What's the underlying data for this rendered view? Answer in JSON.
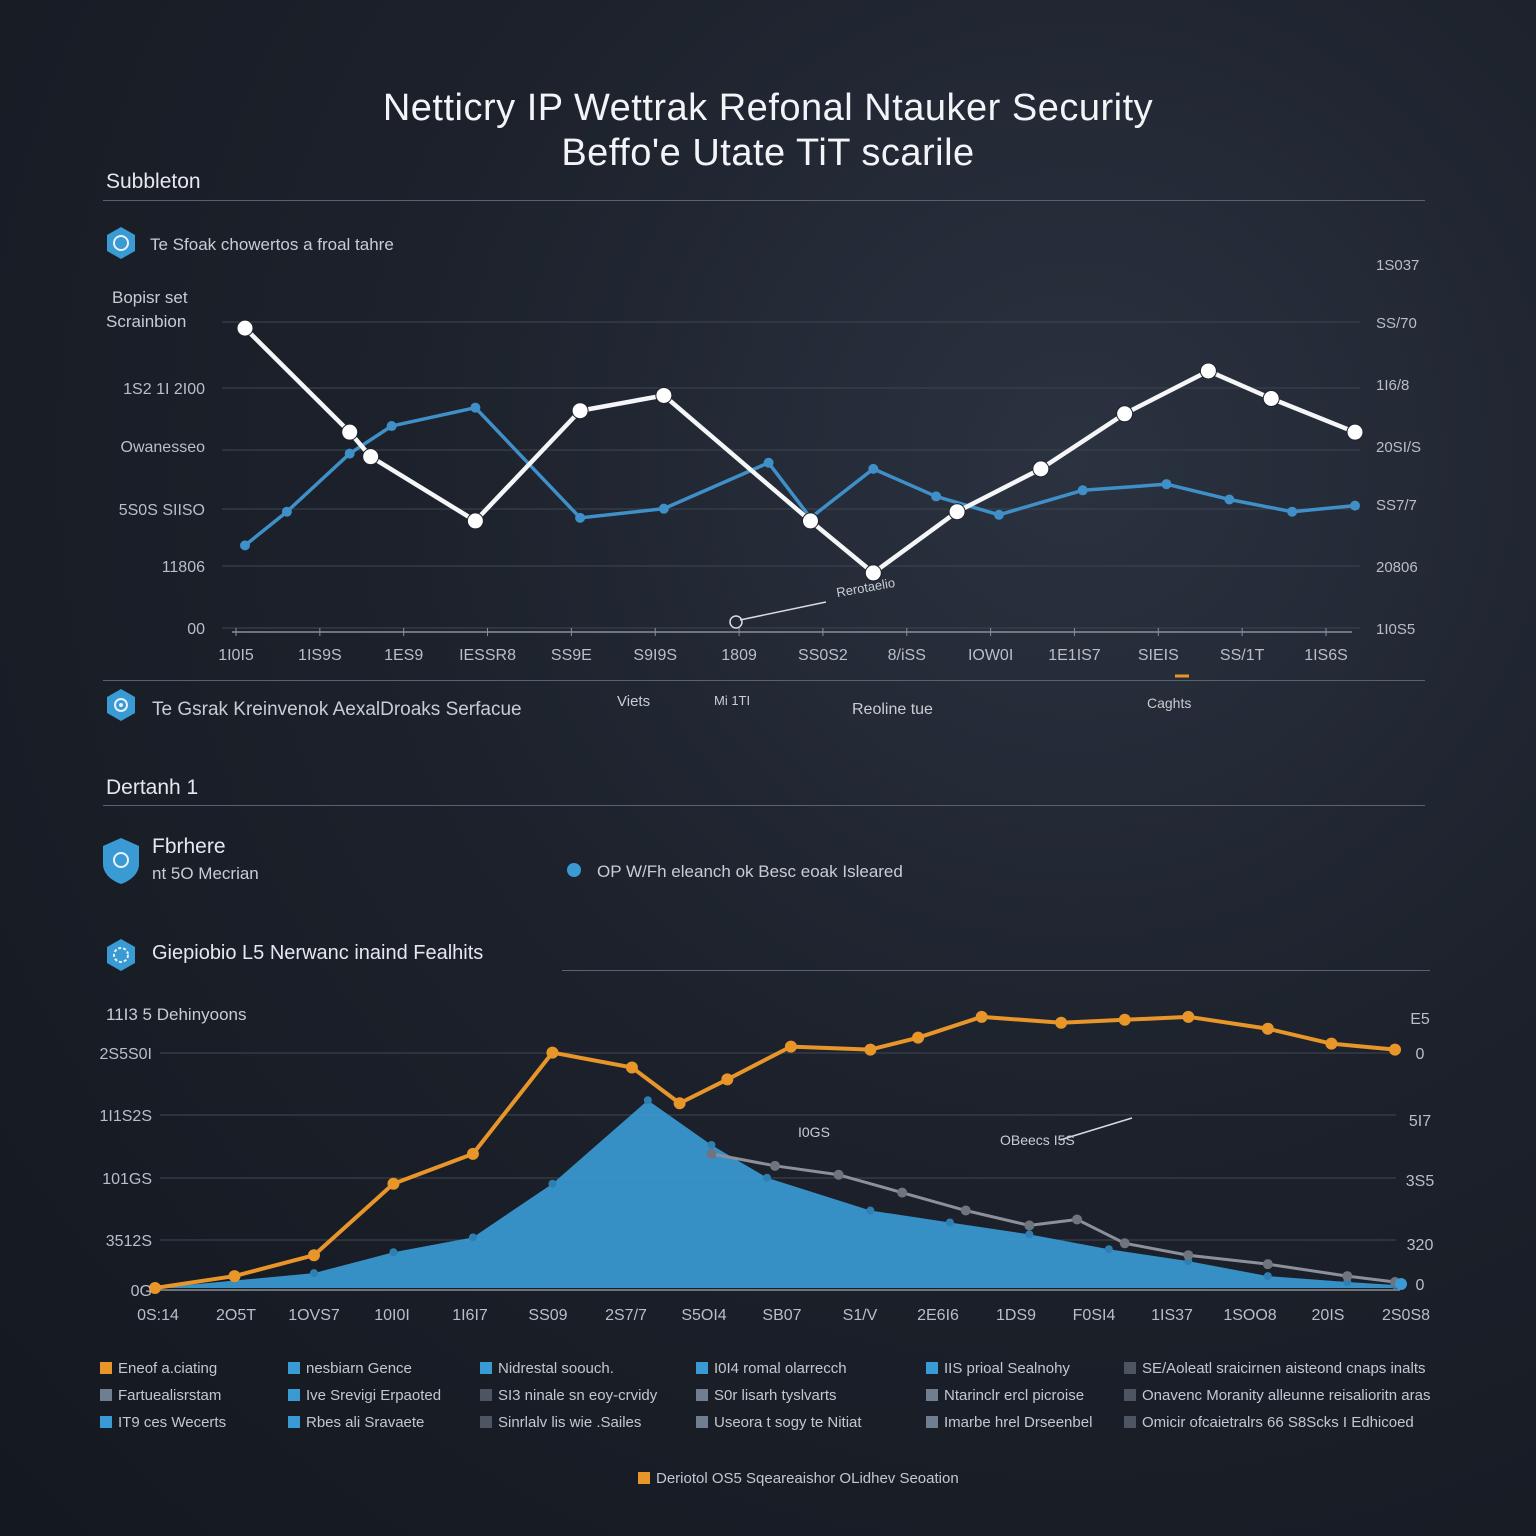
{
  "title": {
    "line1": "Netticry IP Wettrak Refonal Ntauker Security",
    "line2": "Beffo'e Utate TiT scarile"
  },
  "section1": {
    "heading": "Subbleton",
    "note": "Te Sfoak chowertos a froal tahre"
  },
  "chart1_side": {
    "label1": "Bopisr set",
    "label2": "Scrainbion"
  },
  "section1_footer": {
    "caption": "Te Gsrak Kreinvenok AexalDroaks Serfacue",
    "t1": "Viets",
    "t2": "Mi 1TI",
    "t3": "Reoline tue",
    "t4": "Caghts"
  },
  "section2": {
    "heading": "Dertanh 1",
    "item_title": "Fbrhere",
    "item_sub": "nt 5O Mecrian",
    "note": "OP W/Fh eleanch ok Besc eoak Isleared"
  },
  "chart2_head": {
    "title": "Giepiobio L5 Nerwanc inaind Fealhits",
    "ylabel": "11I3 5 Dehinyoons"
  },
  "footer_note": "Deriotol OS5 Sqeareaishor OLidhev Seoation",
  "colors": {
    "white_line": "#f4f6f8",
    "blue_line": "#3f8fc8",
    "orange_line": "#e8962a",
    "area": "#3a9ad3",
    "grey_line": "#8b919b",
    "grid": "#3a404b"
  },
  "icons": [
    "shield-hex-icon",
    "network-hex-icon",
    "shield-icon",
    "gear-hex-icon"
  ],
  "chart_data": [
    {
      "type": "line",
      "title": "Te Sfoak chowertos a froal tahre",
      "categories": [
        "1I0I5",
        "1IS9S",
        "1ES9",
        "IESSR8",
        "SS9E",
        "S9I9S",
        "1809",
        "SS0S2",
        "8/iSS",
        "IOW0I",
        "1E1IS7",
        "SIEIS",
        "SS/1T",
        "1IS6S"
      ],
      "y_left_ticks": [
        "00",
        "11806",
        "5S0S SIISO",
        "Owanesseo",
        "1S2 1I 2I00"
      ],
      "y_right_ticks": [
        "1I0S5",
        "20806",
        "SS7/7",
        "20SI/S",
        "1I6/8",
        "SS/70",
        "1S037"
      ],
      "ylim": [
        0,
        100
      ],
      "series": [
        {
          "name": "white",
          "x": [
            0,
            1,
            1.2,
            2.2,
            3.2,
            4.0,
            5.4,
            6.0,
            6.8,
            7.6,
            8.4,
            9.2,
            9.8,
            10.6
          ],
          "values": [
            98,
            64,
            56,
            35,
            71,
            76,
            35,
            18,
            38,
            52,
            70,
            84,
            75,
            64
          ]
        },
        {
          "name": "blue",
          "x": [
            0,
            0.4,
            1.0,
            1.4,
            2.2,
            3.2,
            4.0,
            5.0,
            5.4,
            6.0,
            6.6,
            7.2,
            8.0,
            8.8,
            9.4,
            10.0,
            10.6
          ],
          "values": [
            27,
            38,
            57,
            66,
            72,
            36,
            39,
            54,
            36,
            52,
            43,
            37,
            45,
            47,
            42,
            38,
            40
          ]
        }
      ],
      "annotation": "Rerotaelio"
    },
    {
      "type": "area",
      "title": "Giepiobio L5 Nerwanc inaind Fealhits",
      "categories": [
        "0S:14",
        "2O5T",
        "1OVS7",
        "10I0I",
        "1I6I7",
        "SS09",
        "2S7/7",
        "S5OI4",
        "SB07",
        "S1/V",
        "2E6I6",
        "1DS9",
        "F0SI4",
        "1IS37",
        "1SOO8",
        "20IS",
        "2S0S8"
      ],
      "y_left_ticks": [
        "0G",
        "3512S",
        "101GS",
        "1I1S2S",
        "2S5S0I"
      ],
      "y_right_ticks": [
        "0",
        "320",
        "3S5",
        "5I7",
        "0",
        "E5"
      ],
      "ylim": [
        0,
        100
      ],
      "series": [
        {
          "name": "orange",
          "x": [
            0,
            1,
            2,
            3,
            4,
            5,
            6,
            6.6,
            7.2,
            8.0,
            9.0,
            9.6,
            10.4,
            11.4,
            12.2,
            13.0,
            14.0,
            14.8,
            15.6
          ],
          "values": [
            0,
            4,
            11,
            35,
            45,
            79,
            74,
            62,
            70,
            81,
            80,
            84,
            91,
            89,
            90,
            91,
            87,
            82,
            80
          ]
        },
        {
          "name": "blue_area",
          "x": [
            0,
            2,
            3,
            4,
            5,
            6.2,
            7,
            7.7,
            9,
            10,
            11,
            12,
            13,
            14,
            15,
            15.6
          ],
          "values": [
            0,
            5,
            12,
            17,
            35,
            63,
            48,
            37,
            26,
            22,
            18,
            13,
            9,
            4,
            2,
            1
          ]
        },
        {
          "name": "grey",
          "x": [
            7.0,
            7.8,
            8.6,
            9.4,
            10.2,
            11.0,
            11.6,
            12.2,
            13.0,
            14.0,
            15.0,
            15.6
          ],
          "values": [
            45,
            41,
            38,
            32,
            26,
            21,
            23,
            15,
            11,
            8,
            4,
            2
          ]
        }
      ],
      "annotation_a": "I0GS",
      "annotation_b": "OBeecs I5S"
    }
  ],
  "legend": {
    "rows": [
      [
        "Eneof a.ciating",
        "nesbiarn Gence",
        "Nidrestal soouch.",
        "I0I4 romal olarrecch",
        "IIS prioal Sealnohy",
        "SE/Aoleatl sraicirnen aisteond cnaps inalts"
      ],
      [
        "Fartuealisrstam",
        "Ive Srevigi Erpaoted",
        "SI3 ninale sn eoy-crvidy",
        "S0r lisarh tyslvarts",
        "Ntarinclr ercl picroise",
        "Onavenc Moranity alleunne reisalioritn aras"
      ],
      [
        "IT9 ces Wecerts",
        "Rbes ali Sravaete",
        "Sinrlalv lis wie .Sailes",
        "Useora t sogy te Nitiat",
        "Imarbe hrel Drseenbel",
        "Omicir ofcaietralrs 66 S8Scks I Edhicoed"
      ]
    ],
    "colors": [
      [
        "#e8962a",
        "#3a9ad3",
        "#3a9ad3",
        "#3a9ad3",
        "#3a9ad3",
        "#4d5563"
      ],
      [
        "#6f7f91",
        "#3a9ad3",
        "#4d5563",
        "#6f7f91",
        "#6f7f91",
        "#4d5563"
      ],
      [
        "#3a9ad3",
        "#3a9ad3",
        "#4d5563",
        "#6f7f91",
        "#6f7f91",
        "#4d5563"
      ]
    ],
    "footer_swatch": "#e8962a"
  }
}
